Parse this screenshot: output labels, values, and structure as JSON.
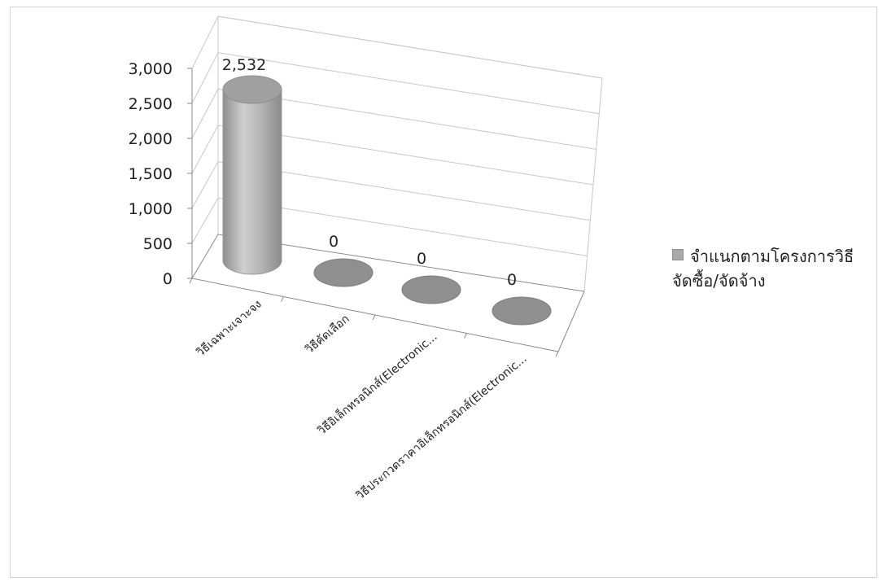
{
  "chart_data": {
    "type": "bar",
    "style": "3d-cylinder",
    "categories": [
      "วิธีเฉพาะเจาะจง",
      "วิธีคัดเลือก",
      "วิธีอิเล็กทรอนิกส์(Electronic...",
      "วิธีประกวดราคาอิเล็กทรอนิกส์(Electronic..."
    ],
    "series": [
      {
        "name": "จำแนกตามโครงการวิธี จัดซื้อ/จัดจ้าง",
        "values": [
          2532,
          0,
          0,
          0
        ]
      }
    ],
    "data_labels": [
      "2,532",
      "0",
      "0",
      "0"
    ],
    "y_ticks": [
      "0",
      "500",
      "1,000",
      "1,500",
      "2,000",
      "2,500",
      "3,000"
    ],
    "ylim": [
      0,
      3000
    ],
    "grid": true,
    "legend_position": "right",
    "colors": {
      "bar": "#a9a9a9",
      "grid": "#c8c8c8",
      "axis": "#8a8a8a"
    }
  },
  "legend": {
    "line1": "จำแนกตามโครงการวิธี",
    "line2": "จัดซื้อ/จัดจ้าง"
  }
}
